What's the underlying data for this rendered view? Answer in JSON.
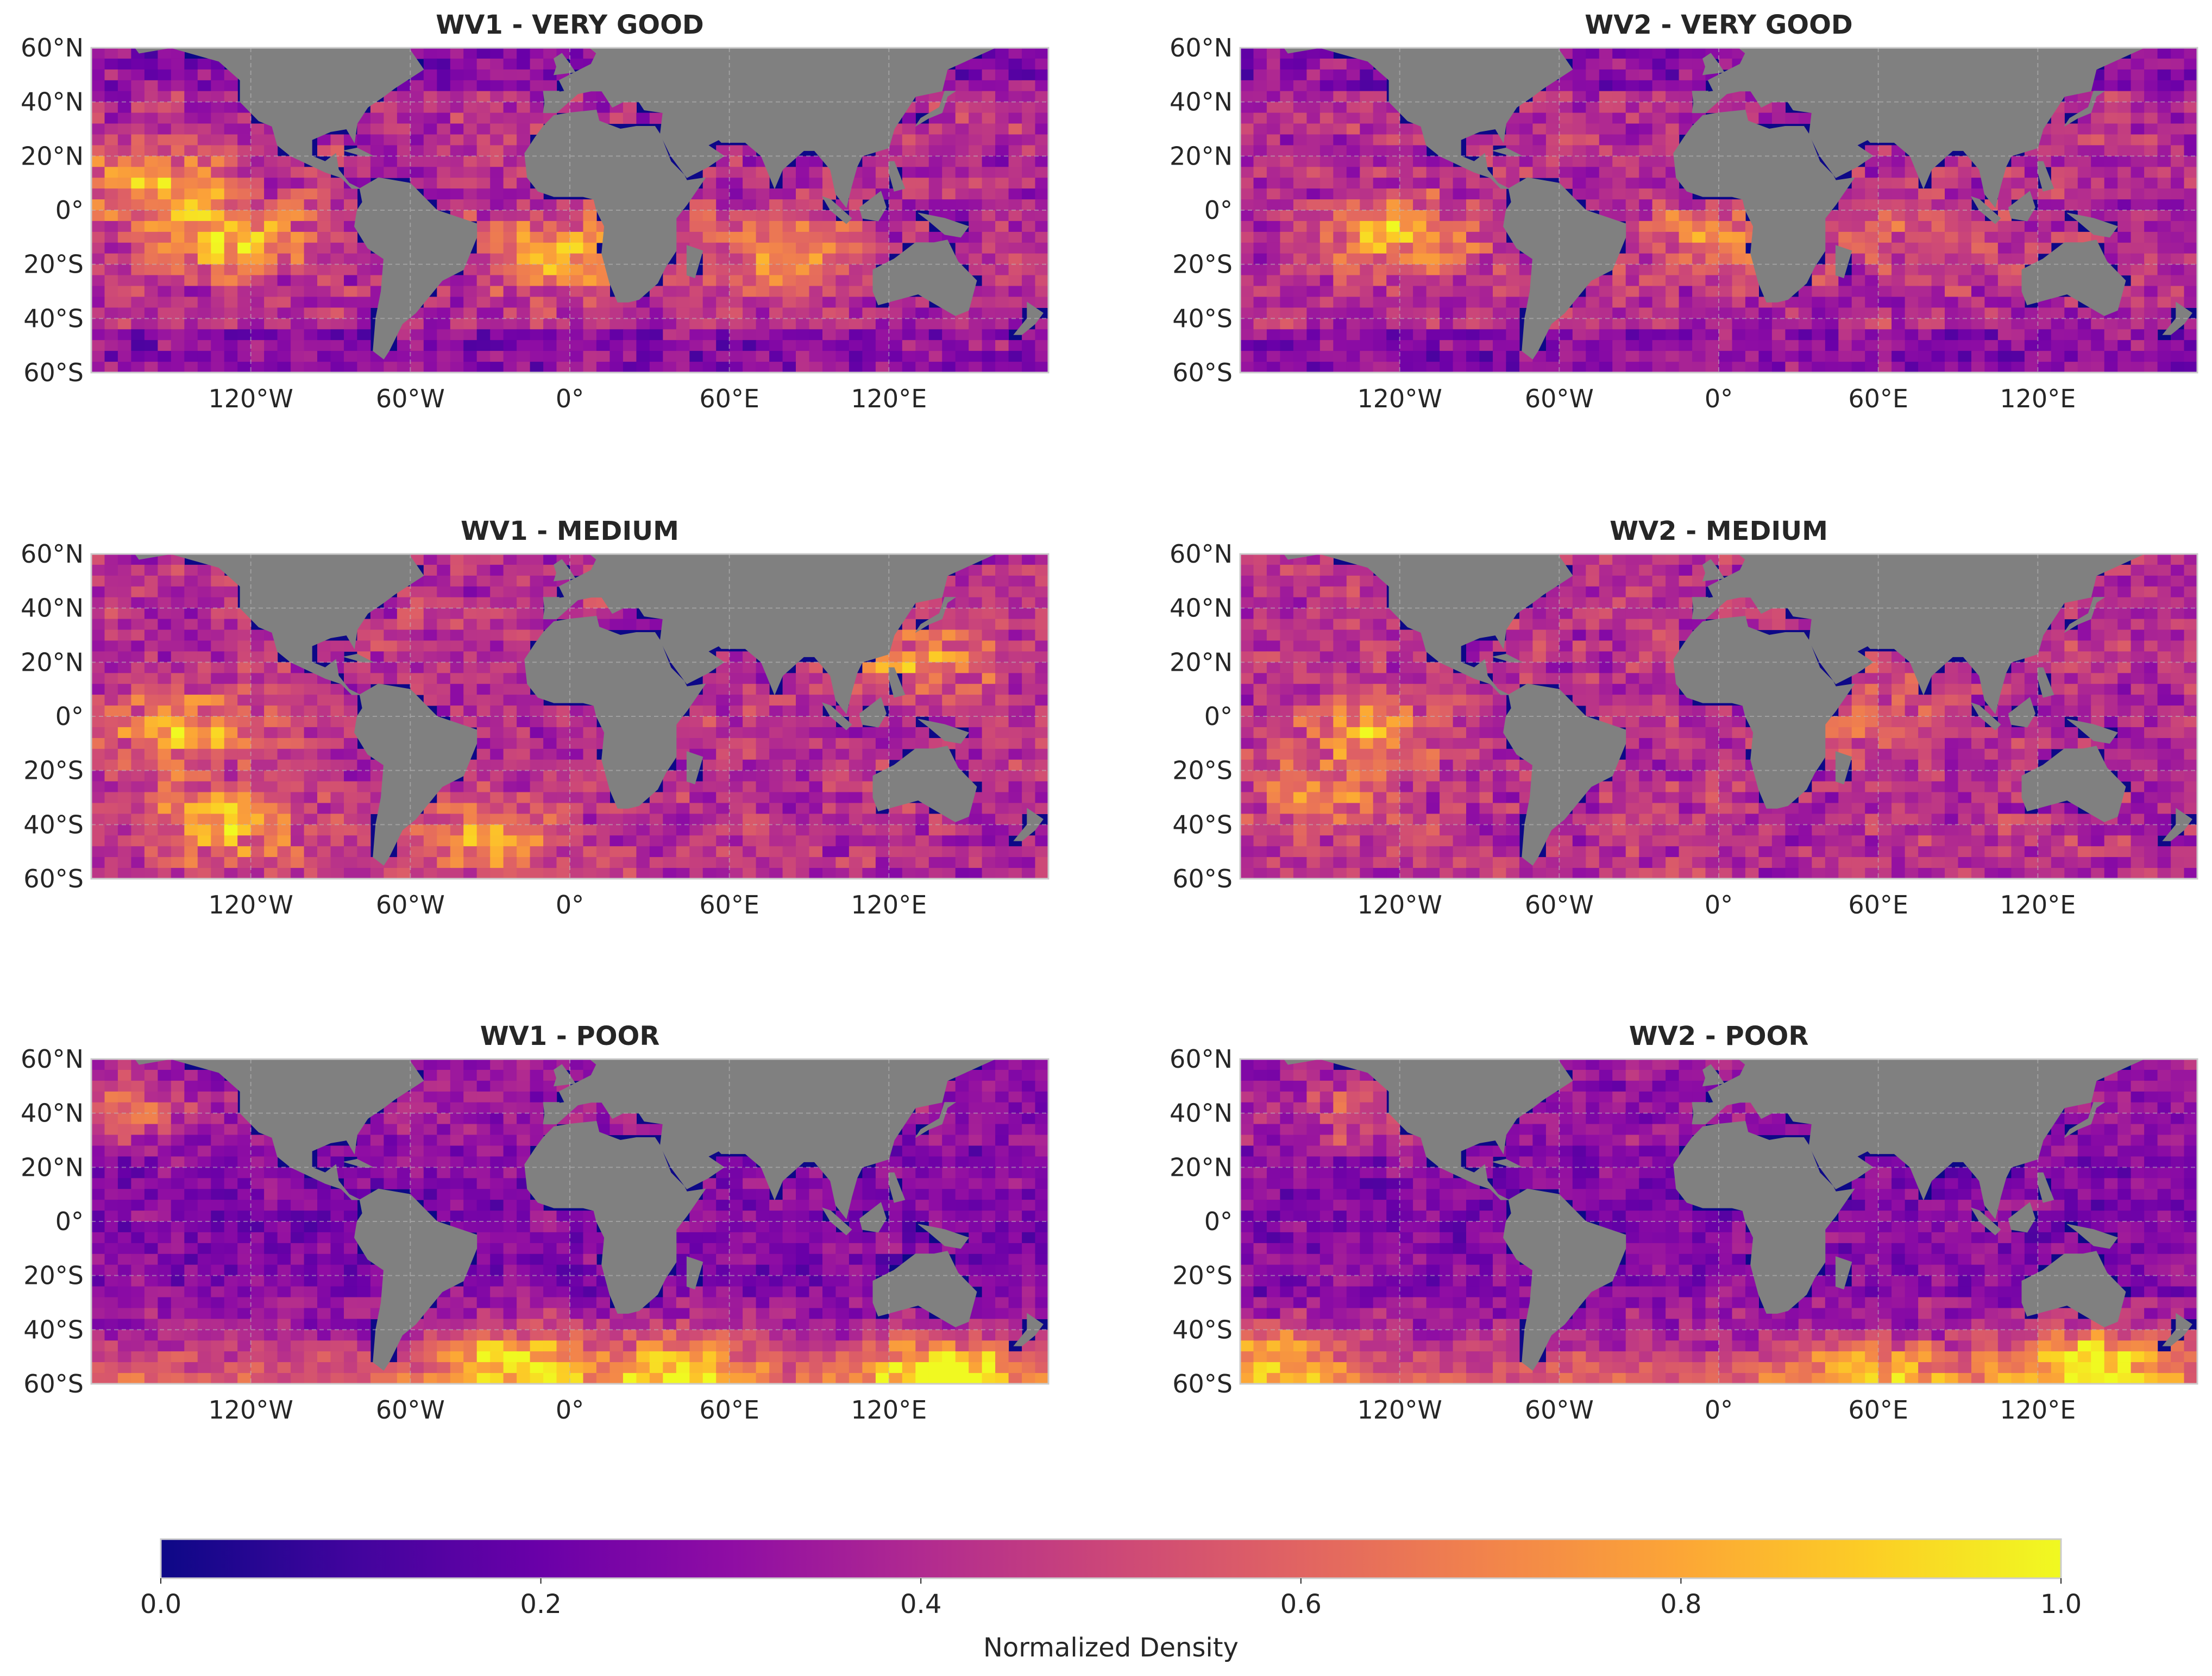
{
  "figure": {
    "colormap": "plasma",
    "colorbar": {
      "label": "Normalized Density",
      "ticks": [
        "0.0",
        "0.2",
        "0.4",
        "0.6",
        "0.8",
        "1.0"
      ],
      "tick_values": [
        0,
        0.2,
        0.4,
        0.6,
        0.8,
        1.0
      ],
      "range": [
        0,
        1
      ],
      "orientation": "horizontal"
    },
    "colors": {
      "land": "#808080",
      "ocean_min": "#0d0887",
      "mid": "#cc4778",
      "max": "#f0f921",
      "frame": "#cccccc",
      "grid": "#bbbbbb"
    }
  },
  "chart_data": [
    {
      "type": "heatmap",
      "title": "WV1 - VERY GOOD",
      "sensor": "WV1",
      "quality": "VERY GOOD",
      "xlim": [
        -180,
        180
      ],
      "ylim": [
        -60,
        60
      ],
      "xticks": [
        "120°W",
        "60°W",
        "0°",
        "60°E",
        "120°E"
      ],
      "xtick_values": [
        -120,
        -60,
        0,
        60,
        120
      ],
      "yticks": [
        "60°N",
        "40°N",
        "20°N",
        "0°",
        "20°S",
        "40°S",
        "60°S"
      ],
      "ytick_values": [
        60,
        40,
        20,
        0,
        -20,
        -40,
        -60
      ],
      "clim": [
        0,
        1
      ],
      "hotspots": [
        {
          "lon": -130,
          "lat": -10,
          "value": 0.85
        },
        {
          "lon": -160,
          "lat": 10,
          "value": 0.7
        },
        {
          "lon": -5,
          "lat": -15,
          "value": 0.8
        },
        {
          "lon": 80,
          "lat": -15,
          "value": 0.7
        }
      ]
    },
    {
      "type": "heatmap",
      "title": "WV2 - VERY GOOD",
      "sensor": "WV2",
      "quality": "VERY GOOD",
      "xlim": [
        -180,
        180
      ],
      "ylim": [
        -60,
        60
      ],
      "xticks": [
        "120°W",
        "60°W",
        "0°",
        "60°E",
        "120°E"
      ],
      "xtick_values": [
        -120,
        -60,
        0,
        60,
        120
      ],
      "yticks": [
        "60°N",
        "40°N",
        "20°N",
        "0°",
        "20°S",
        "40°S",
        "60°S"
      ],
      "ytick_values": [
        60,
        40,
        20,
        0,
        -20,
        -40,
        -60
      ],
      "clim": [
        0,
        1
      ],
      "hotspots": [
        {
          "lon": -120,
          "lat": -10,
          "value": 0.75
        },
        {
          "lon": -5,
          "lat": -10,
          "value": 0.6
        },
        {
          "lon": 70,
          "lat": -10,
          "value": 0.5
        }
      ]
    },
    {
      "type": "heatmap",
      "title": "WV1 - MEDIUM",
      "sensor": "WV1",
      "quality": "MEDIUM",
      "xlim": [
        -180,
        180
      ],
      "ylim": [
        -60,
        60
      ],
      "xticks": [
        "120°W",
        "60°W",
        "0°",
        "60°E",
        "120°E"
      ],
      "xtick_values": [
        -120,
        -60,
        0,
        60,
        120
      ],
      "yticks": [
        "60°N",
        "40°N",
        "20°N",
        "0°",
        "20°S",
        "40°S",
        "60°S"
      ],
      "ytick_values": [
        60,
        40,
        20,
        0,
        -20,
        -40,
        -60
      ],
      "clim": [
        0,
        1
      ],
      "hotspots": [
        {
          "lon": -145,
          "lat": -5,
          "value": 0.8
        },
        {
          "lon": -130,
          "lat": -40,
          "value": 0.75
        },
        {
          "lon": -30,
          "lat": -45,
          "value": 0.7
        },
        {
          "lon": 130,
          "lat": 20,
          "value": 0.65
        }
      ]
    },
    {
      "type": "heatmap",
      "title": "WV2 - MEDIUM",
      "sensor": "WV2",
      "quality": "MEDIUM",
      "xlim": [
        -180,
        180
      ],
      "ylim": [
        -60,
        60
      ],
      "xticks": [
        "120°W",
        "60°W",
        "0°",
        "60°E",
        "120°E"
      ],
      "xtick_values": [
        -120,
        -60,
        0,
        60,
        120
      ],
      "yticks": [
        "60°N",
        "40°N",
        "20°N",
        "0°",
        "20°S",
        "40°S",
        "60°S"
      ],
      "ytick_values": [
        60,
        40,
        20,
        0,
        -20,
        -40,
        -60
      ],
      "clim": [
        0,
        1
      ],
      "hotspots": [
        {
          "lon": -130,
          "lat": -5,
          "value": 0.7
        },
        {
          "lon": -150,
          "lat": -30,
          "value": 0.6
        },
        {
          "lon": 60,
          "lat": 0,
          "value": 0.55
        }
      ]
    },
    {
      "type": "heatmap",
      "title": "WV1 - POOR",
      "sensor": "WV1",
      "quality": "POOR",
      "xlim": [
        -180,
        180
      ],
      "ylim": [
        -60,
        60
      ],
      "xticks": [
        "120°W",
        "60°W",
        "0°",
        "60°E",
        "120°E"
      ],
      "xtick_values": [
        -120,
        -60,
        0,
        60,
        120
      ],
      "yticks": [
        "60°N",
        "40°N",
        "20°N",
        "0°",
        "20°S",
        "40°S",
        "60°S"
      ],
      "ytick_values": [
        60,
        40,
        20,
        0,
        -20,
        -40,
        -60
      ],
      "clim": [
        0,
        1
      ],
      "hotspots": [
        {
          "lon": -20,
          "lat": -52,
          "value": 0.8
        },
        {
          "lon": 40,
          "lat": -55,
          "value": 0.75
        },
        {
          "lon": 140,
          "lat": -57,
          "value": 0.9
        },
        {
          "lon": -170,
          "lat": 40,
          "value": 0.6
        }
      ]
    },
    {
      "type": "heatmap",
      "title": "WV2 - POOR",
      "sensor": "WV2",
      "quality": "POOR",
      "xlim": [
        -180,
        180
      ],
      "ylim": [
        -60,
        60
      ],
      "xticks": [
        "120°W",
        "60°W",
        "0°",
        "60°E",
        "120°E"
      ],
      "xtick_values": [
        -120,
        -60,
        0,
        60,
        120
      ],
      "yticks": [
        "60°N",
        "40°N",
        "20°N",
        "0°",
        "20°S",
        "40°S",
        "60°S"
      ],
      "ytick_values": [
        60,
        40,
        20,
        0,
        -20,
        -40,
        -60
      ],
      "clim": [
        0,
        1
      ],
      "hotspots": [
        {
          "lon": 140,
          "lat": -53,
          "value": 0.9
        },
        {
          "lon": 60,
          "lat": -55,
          "value": 0.7
        },
        {
          "lon": -170,
          "lat": -52,
          "value": 0.75
        },
        {
          "lon": -140,
          "lat": 40,
          "value": 0.55
        }
      ]
    }
  ]
}
